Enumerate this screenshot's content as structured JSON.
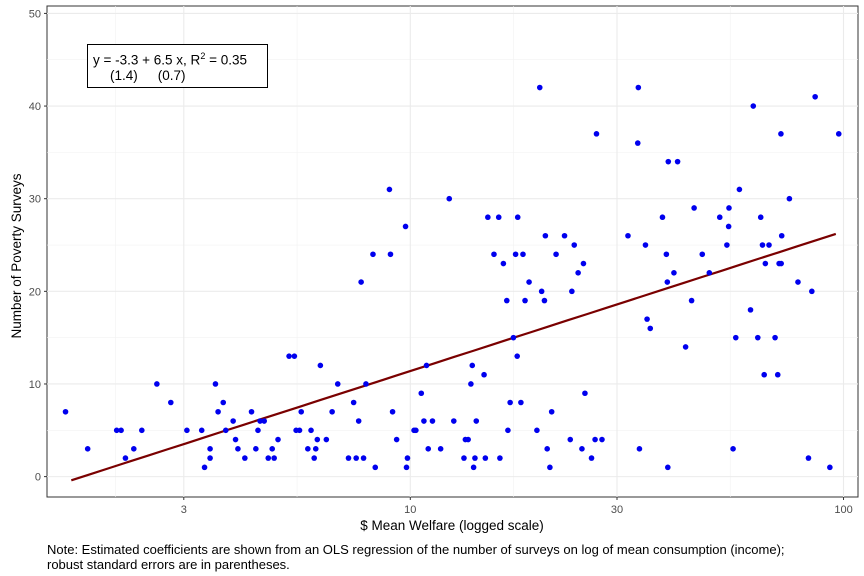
{
  "chart_data": {
    "type": "scatter",
    "xlabel": "$ Mean Welfare (logged scale)",
    "ylabel": "Number of Poverty Surveys",
    "x_scale": "log",
    "xlim": [
      1.45,
      108
    ],
    "ylim": [
      -2.2,
      50.8
    ],
    "x_ticks": [
      3,
      10,
      30,
      100
    ],
    "y_ticks": [
      0,
      10,
      20,
      30,
      40,
      50
    ],
    "grid": true,
    "point_color": "#0000ee",
    "line_color": "#7a0000",
    "annotation": {
      "line1_prefix": "y = -3.3 + 6.5 x, R",
      "line1_sup": "2",
      "line1_suffix": " = 0.35",
      "se_intercept": "(1.4)",
      "se_slope": "(0.7)"
    },
    "fit_line": {
      "x": [
        1.65,
        96
      ],
      "y": [
        -0.4,
        26.2
      ]
    },
    "points": [
      [
        1.6,
        7
      ],
      [
        1.8,
        3
      ],
      [
        2.1,
        5
      ],
      [
        2.15,
        5
      ],
      [
        2.2,
        2
      ],
      [
        2.3,
        3
      ],
      [
        2.4,
        5
      ],
      [
        2.6,
        10
      ],
      [
        2.8,
        8
      ],
      [
        3.05,
        5
      ],
      [
        3.3,
        5
      ],
      [
        3.35,
        1
      ],
      [
        3.45,
        2
      ],
      [
        3.45,
        3
      ],
      [
        3.55,
        10
      ],
      [
        3.6,
        7
      ],
      [
        3.7,
        8
      ],
      [
        3.75,
        5
      ],
      [
        3.9,
        6
      ],
      [
        3.95,
        4
      ],
      [
        4.0,
        3
      ],
      [
        4.15,
        2
      ],
      [
        4.3,
        7
      ],
      [
        4.4,
        3
      ],
      [
        4.45,
        5
      ],
      [
        4.5,
        6
      ],
      [
        4.6,
        6
      ],
      [
        4.7,
        2
      ],
      [
        4.8,
        3
      ],
      [
        4.85,
        2
      ],
      [
        4.95,
        4
      ],
      [
        5.25,
        13
      ],
      [
        5.4,
        13
      ],
      [
        5.45,
        5
      ],
      [
        5.55,
        5
      ],
      [
        5.6,
        7
      ],
      [
        5.8,
        3
      ],
      [
        5.9,
        5
      ],
      [
        6.0,
        2
      ],
      [
        6.05,
        3
      ],
      [
        6.1,
        4
      ],
      [
        6.2,
        12
      ],
      [
        6.4,
        4
      ],
      [
        6.6,
        7
      ],
      [
        6.8,
        10
      ],
      [
        7.2,
        2
      ],
      [
        7.4,
        8
      ],
      [
        7.5,
        2
      ],
      [
        7.6,
        6
      ],
      [
        7.7,
        21
      ],
      [
        7.8,
        2
      ],
      [
        7.9,
        10
      ],
      [
        8.2,
        24
      ],
      [
        8.3,
        1
      ],
      [
        8.95,
        31
      ],
      [
        9.0,
        24
      ],
      [
        9.1,
        7
      ],
      [
        9.3,
        4
      ],
      [
        9.75,
        27
      ],
      [
        9.8,
        1
      ],
      [
        9.85,
        2
      ],
      [
        10.2,
        5
      ],
      [
        10.3,
        5
      ],
      [
        10.6,
        9
      ],
      [
        10.75,
        6
      ],
      [
        10.9,
        12
      ],
      [
        11.0,
        3
      ],
      [
        11.25,
        6
      ],
      [
        11.75,
        3
      ],
      [
        12.3,
        30
      ],
      [
        12.6,
        6
      ],
      [
        13.3,
        2
      ],
      [
        13.4,
        4
      ],
      [
        13.6,
        4
      ],
      [
        13.8,
        10
      ],
      [
        13.9,
        12
      ],
      [
        14.0,
        1
      ],
      [
        14.1,
        2
      ],
      [
        14.2,
        6
      ],
      [
        14.8,
        11
      ],
      [
        14.9,
        2
      ],
      [
        15.1,
        28
      ],
      [
        15.6,
        24
      ],
      [
        16.0,
        28
      ],
      [
        16.1,
        2
      ],
      [
        16.4,
        23
      ],
      [
        16.7,
        19
      ],
      [
        16.8,
        5
      ],
      [
        17.0,
        8
      ],
      [
        17.3,
        15
      ],
      [
        17.5,
        24
      ],
      [
        17.65,
        13
      ],
      [
        17.7,
        28
      ],
      [
        18.0,
        8
      ],
      [
        18.2,
        24
      ],
      [
        18.4,
        19
      ],
      [
        18.8,
        21
      ],
      [
        19.6,
        5
      ],
      [
        19.9,
        42
      ],
      [
        20.1,
        20
      ],
      [
        20.4,
        19
      ],
      [
        20.5,
        26
      ],
      [
        20.7,
        3
      ],
      [
        21.0,
        1
      ],
      [
        21.2,
        7
      ],
      [
        21.7,
        24
      ],
      [
        22.7,
        26
      ],
      [
        23.4,
        4
      ],
      [
        23.6,
        20
      ],
      [
        23.9,
        25
      ],
      [
        24.4,
        22
      ],
      [
        24.9,
        3
      ],
      [
        25.1,
        23
      ],
      [
        25.3,
        9
      ],
      [
        26.2,
        2
      ],
      [
        26.7,
        4
      ],
      [
        26.9,
        37
      ],
      [
        27.7,
        4
      ],
      [
        31.8,
        26
      ],
      [
        33.5,
        36
      ],
      [
        33.6,
        42
      ],
      [
        33.8,
        3
      ],
      [
        34.9,
        25
      ],
      [
        35.2,
        17
      ],
      [
        35.8,
        16
      ],
      [
        38.2,
        28
      ],
      [
        39.0,
        24
      ],
      [
        39.2,
        21
      ],
      [
        39.3,
        1
      ],
      [
        39.4,
        34
      ],
      [
        40.6,
        22
      ],
      [
        41.4,
        34
      ],
      [
        43.2,
        14
      ],
      [
        44.6,
        19
      ],
      [
        45.2,
        29
      ],
      [
        47.2,
        24
      ],
      [
        49.0,
        22
      ],
      [
        51.8,
        28
      ],
      [
        53.8,
        25
      ],
      [
        54.3,
        27
      ],
      [
        54.4,
        29
      ],
      [
        55.6,
        3
      ],
      [
        56.4,
        15
      ],
      [
        57.5,
        31
      ],
      [
        61.0,
        18
      ],
      [
        61.9,
        40
      ],
      [
        63.4,
        15
      ],
      [
        64.4,
        28
      ],
      [
        65.0,
        25
      ],
      [
        65.6,
        11
      ],
      [
        66.0,
        23
      ],
      [
        67.3,
        25
      ],
      [
        69.5,
        15
      ],
      [
        70.5,
        11
      ],
      [
        71.0,
        23
      ],
      [
        71.7,
        37
      ],
      [
        71.8,
        23
      ],
      [
        72.0,
        26
      ],
      [
        75.0,
        30
      ],
      [
        78.5,
        21
      ],
      [
        83.0,
        2
      ],
      [
        84.5,
        20
      ],
      [
        86.0,
        41
      ],
      [
        93.0,
        1
      ],
      [
        97.5,
        37
      ]
    ]
  },
  "note": "Note: Estimated coefficients are shown from an OLS regression of the number of surveys on log of mean consumption (income); robust standard errors are in parentheses."
}
